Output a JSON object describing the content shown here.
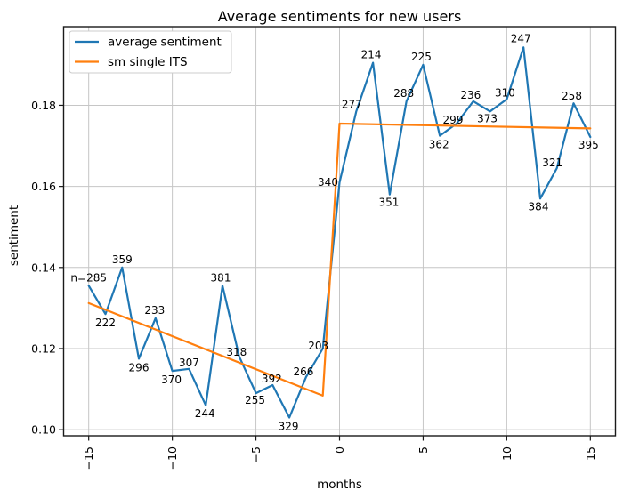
{
  "chart_data": {
    "type": "line",
    "title": "Average sentiments for new users",
    "xlabel": "months",
    "ylabel": "sentiment",
    "xlim": [
      -16.5,
      16.5
    ],
    "ylim": [
      0.0985,
      0.1994
    ],
    "grid": true,
    "xticks": [
      {
        "value": -15,
        "label": "−15"
      },
      {
        "value": -10,
        "label": "−10"
      },
      {
        "value": -5,
        "label": "−5"
      },
      {
        "value": 0,
        "label": "0"
      },
      {
        "value": 5,
        "label": "5"
      },
      {
        "value": 10,
        "label": "10"
      },
      {
        "value": 15,
        "label": "15"
      }
    ],
    "yticks": [
      {
        "value": 0.1,
        "label": "0.10"
      },
      {
        "value": 0.12,
        "label": "0.12"
      },
      {
        "value": 0.14,
        "label": "0.14"
      },
      {
        "value": 0.16,
        "label": "0.16"
      },
      {
        "value": 0.18,
        "label": "0.18"
      }
    ],
    "colors": {
      "blue": "#1f77b4",
      "orange": "#ff7f0e",
      "grid": "#c6c6c6",
      "spine": "#1a1a1a",
      "text": "#000000",
      "legend_border": "#cccccc"
    },
    "legend": {
      "position": "upper-left",
      "entries": [
        "average sentiment",
        "sm single ITS"
      ]
    },
    "series": [
      {
        "name": "average sentiment",
        "color": "#1f77b4",
        "x": [
          -15,
          -14,
          -13,
          -12,
          -11,
          -10,
          -9,
          -8,
          -7,
          -6,
          -5,
          -4,
          -3,
          -2,
          -1,
          0,
          1,
          2,
          3,
          4,
          5,
          6,
          7,
          8,
          9,
          10,
          11,
          12,
          13,
          14,
          15
        ],
        "y": [
          0.1355,
          0.1285,
          0.14,
          0.1175,
          0.1275,
          0.1145,
          0.115,
          0.106,
          0.1355,
          0.118,
          0.109,
          0.111,
          0.103,
          0.113,
          0.12,
          0.161,
          0.1785,
          0.1905,
          0.158,
          0.181,
          0.19,
          0.1725,
          0.1755,
          0.181,
          0.1785,
          0.1815,
          0.1943,
          0.157,
          0.1645,
          0.1805,
          0.1722
        ],
        "annotations": [
          {
            "text": "n=285",
            "dx": 0,
            "dy": -9
          },
          {
            "text": "222",
            "dx": 0,
            "dy": 10
          },
          {
            "text": "359",
            "dx": 0,
            "dy": -9
          },
          {
            "text": "296",
            "dx": 0,
            "dy": 10
          },
          {
            "text": "233",
            "dx": -1,
            "dy": -9
          },
          {
            "text": "370",
            "dx": -1,
            "dy": 10
          },
          {
            "text": "307",
            "dx": 0,
            "dy": -7
          },
          {
            "text": "244",
            "dx": -1,
            "dy": 9
          },
          {
            "text": "381",
            "dx": -2,
            "dy": -9
          },
          {
            "text": "318",
            "dx": -3,
            "dy": -5
          },
          {
            "text": "255",
            "dx": -1,
            "dy": 8
          },
          {
            "text": "392",
            "dx": -1,
            "dy": -7
          },
          {
            "text": "329",
            "dx": -1,
            "dy": 10
          },
          {
            "text": "266",
            "dx": -3,
            "dy": -6
          },
          {
            "text": "203",
            "dx": -5,
            "dy": -3
          },
          {
            "text": "340",
            "dx": -13,
            "dy": 0
          },
          {
            "text": "277",
            "dx": -5,
            "dy": -8
          },
          {
            "text": "214",
            "dx": -2,
            "dy": -9
          },
          {
            "text": "351",
            "dx": -1,
            "dy": 9
          },
          {
            "text": "288",
            "dx": -3,
            "dy": -9
          },
          {
            "text": "225",
            "dx": -2,
            "dy": -9
          },
          {
            "text": "362",
            "dx": -1,
            "dy": 10
          },
          {
            "text": "299",
            "dx": -4,
            "dy": -4
          },
          {
            "text": "236",
            "dx": -3,
            "dy": -7
          },
          {
            "text": "373",
            "dx": -3,
            "dy": 8
          },
          {
            "text": "310",
            "dx": -2,
            "dy": -7
          },
          {
            "text": "247",
            "dx": -3,
            "dy": -10
          },
          {
            "text": "384",
            "dx": -2,
            "dy": 9
          },
          {
            "text": "321",
            "dx": -5,
            "dy": -6
          },
          {
            "text": "258",
            "dx": -2,
            "dy": -8
          },
          {
            "text": "395",
            "dx": -2,
            "dy": 9
          }
        ]
      },
      {
        "name": "sm single ITS",
        "color": "#ff7f0e",
        "x": [
          -15,
          -1,
          0,
          15
        ],
        "y": [
          0.1312,
          0.1084,
          0.1755,
          0.1743
        ],
        "annotations": []
      }
    ]
  }
}
